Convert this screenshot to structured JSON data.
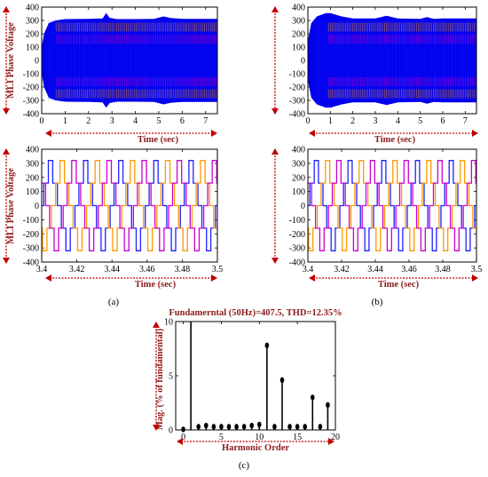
{
  "figure": {
    "panel_labels": [
      "(a)",
      "(b)",
      "(c)"
    ],
    "colors": {
      "phase_a": "#2020ff",
      "phase_b": "#ff9900",
      "phase_c": "#cc00cc",
      "envelope": "#0000ee",
      "label_color": "#8b1a1a",
      "arrow_color": "#c00000"
    }
  },
  "chart_data": [
    {
      "id": "a_top",
      "type": "line",
      "ylabel": "MLI Phase Voltage",
      "xlabel": "Time (sec)",
      "xlim": [
        0,
        7.5
      ],
      "ylim": [
        -400,
        400
      ],
      "xticks": [
        0,
        1,
        2,
        3,
        4,
        5,
        6,
        7
      ],
      "yticks": [
        400,
        300,
        200,
        100,
        0,
        -100,
        -200,
        -300,
        -400
      ],
      "envelope_x": [
        0,
        0.1,
        0.3,
        0.6,
        1.0,
        2.0,
        2.6,
        2.75,
        2.9,
        3.2,
        4.0,
        4.8,
        5.2,
        5.5,
        6.0,
        7.5
      ],
      "envelope_upper": [
        100,
        200,
        280,
        300,
        310,
        312,
        315,
        355,
        320,
        310,
        310,
        312,
        330,
        318,
        312,
        312
      ],
      "envelope_lower": [
        -100,
        -200,
        -280,
        -300,
        -310,
        -312,
        -315,
        -355,
        -320,
        -310,
        -310,
        -312,
        -330,
        -318,
        -312,
        -312
      ]
    },
    {
      "id": "b_top",
      "type": "line",
      "ylabel": "",
      "xlabel": "Time (sec)",
      "xlim": [
        0,
        7.5
      ],
      "ylim": [
        -400,
        400
      ],
      "xticks": [
        0,
        1,
        2,
        3,
        4,
        5,
        6,
        7
      ],
      "yticks": [
        400,
        300,
        200,
        100,
        0,
        -100,
        -200,
        -300,
        -400
      ],
      "envelope_x": [
        0,
        0.15,
        0.4,
        0.8,
        1.0,
        1.5,
        2.0,
        3.0,
        3.5,
        4.0,
        5.0,
        5.3,
        5.6,
        6.0,
        7.5
      ],
      "envelope_upper": [
        150,
        280,
        330,
        355,
        355,
        330,
        315,
        315,
        335,
        315,
        312,
        325,
        312,
        315,
        315
      ],
      "envelope_lower": [
        -150,
        -280,
        -330,
        -355,
        -355,
        -330,
        -315,
        -315,
        -335,
        -315,
        -312,
        -325,
        -312,
        -315,
        -315
      ]
    },
    {
      "id": "a_bottom",
      "type": "line",
      "ylabel": "MLI Phase Voltage",
      "xlabel": "Time (sec)",
      "xlim": [
        3.4,
        3.5
      ],
      "ylim": [
        -400,
        400
      ],
      "xticks": [
        3.4,
        3.42,
        3.44,
        3.46,
        3.48,
        3.5
      ],
      "xticklabels": [
        "3.4",
        "3.42",
        "3.44",
        "3.46",
        "3.48",
        "3.5"
      ],
      "yticks": [
        400,
        300,
        200,
        100,
        0,
        -100,
        -200,
        -300,
        -400
      ],
      "frequency_hz": 50,
      "levels": [
        0,
        160,
        320
      ],
      "series": [
        {
          "phase_deg": 0,
          "color": "#2020ff"
        },
        {
          "phase_deg": -120,
          "color": "#ff9900"
        },
        {
          "phase_deg": 120,
          "color": "#cc00cc"
        }
      ]
    },
    {
      "id": "b_bottom",
      "type": "line",
      "ylabel": "",
      "xlabel": "Time (sec)",
      "xlim": [
        3.4,
        3.5
      ],
      "ylim": [
        -400,
        400
      ],
      "xticks": [
        3.4,
        3.42,
        3.44,
        3.46,
        3.48,
        3.5
      ],
      "xticklabels": [
        "3.4",
        "3.42",
        "3.44",
        "3.46",
        "3.48",
        "3.5"
      ],
      "yticks": [
        400,
        300,
        200,
        100,
        0,
        -100,
        -200,
        -300,
        -400
      ],
      "frequency_hz": 50,
      "levels": [
        0,
        160,
        320
      ],
      "series": [
        {
          "phase_deg": 0,
          "color": "#2020ff"
        },
        {
          "phase_deg": -120,
          "color": "#ff9900"
        },
        {
          "phase_deg": 120,
          "color": "#cc00cc"
        }
      ]
    },
    {
      "id": "c_harmonics",
      "type": "bar",
      "title": "Fundamerntal (50Hz)=407.5, THD=12.35%",
      "ylabel": "Mag. (% of fundamental)",
      "xlabel": "Harmonic Order",
      "xlim": [
        -1,
        20
      ],
      "ylim": [
        0,
        10
      ],
      "xticks": [
        0,
        5,
        10,
        15,
        20
      ],
      "yticks": [
        0,
        5,
        10
      ],
      "x": [
        0,
        1,
        2,
        3,
        4,
        5,
        6,
        7,
        8,
        9,
        10,
        11,
        12,
        13,
        14,
        15,
        16,
        17,
        18,
        19
      ],
      "values": [
        0.05,
        10.0,
        0.3,
        0.4,
        0.3,
        0.3,
        0.3,
        0.3,
        0.3,
        0.4,
        0.5,
        7.8,
        0.3,
        4.6,
        0.3,
        0.3,
        0.3,
        3.0,
        0.3,
        2.3
      ]
    }
  ]
}
